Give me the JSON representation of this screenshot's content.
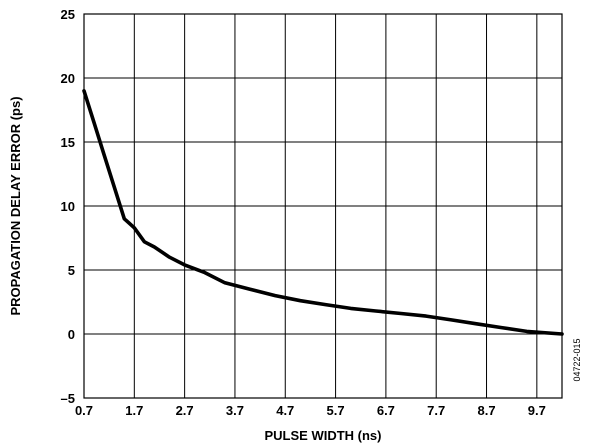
{
  "chart_data": {
    "type": "line",
    "title": "",
    "xlabel": "PULSE WIDTH (ns)",
    "ylabel": "PROPAGATION DELAY ERROR (ps)",
    "xlim": [
      0.7,
      10.2
    ],
    "ylim": [
      -5,
      25
    ],
    "xticks": [
      0.7,
      1.7,
      2.7,
      3.7,
      4.7,
      5.7,
      6.7,
      7.7,
      8.7,
      9.7
    ],
    "xtick_labels": [
      "0.7",
      "1.7",
      "2.7",
      "3.7",
      "4.7",
      "5.7",
      "6.7",
      "7.7",
      "8.7",
      "9.7"
    ],
    "yticks": [
      -5,
      0,
      5,
      10,
      15,
      20,
      25
    ],
    "ytick_labels": [
      "–5",
      "0",
      "5",
      "10",
      "15",
      "20",
      "25"
    ],
    "grid": true,
    "x": [
      0.7,
      0.9,
      1.1,
      1.3,
      1.5,
      1.7,
      1.9,
      2.1,
      2.4,
      2.7,
      3.1,
      3.5,
      4.0,
      4.5,
      5.0,
      5.5,
      6.0,
      6.5,
      7.0,
      7.5,
      8.0,
      8.5,
      9.0,
      9.5,
      10.2
    ],
    "series": [
      {
        "values": [
          19.0,
          16.5,
          14.0,
          11.5,
          9.0,
          8.3,
          7.2,
          6.8,
          6.0,
          5.4,
          4.8,
          4.0,
          3.5,
          3.0,
          2.6,
          2.3,
          2.0,
          1.8,
          1.6,
          1.4,
          1.1,
          0.8,
          0.5,
          0.2,
          0.0
        ]
      }
    ]
  },
  "figure_id": "04722-015"
}
